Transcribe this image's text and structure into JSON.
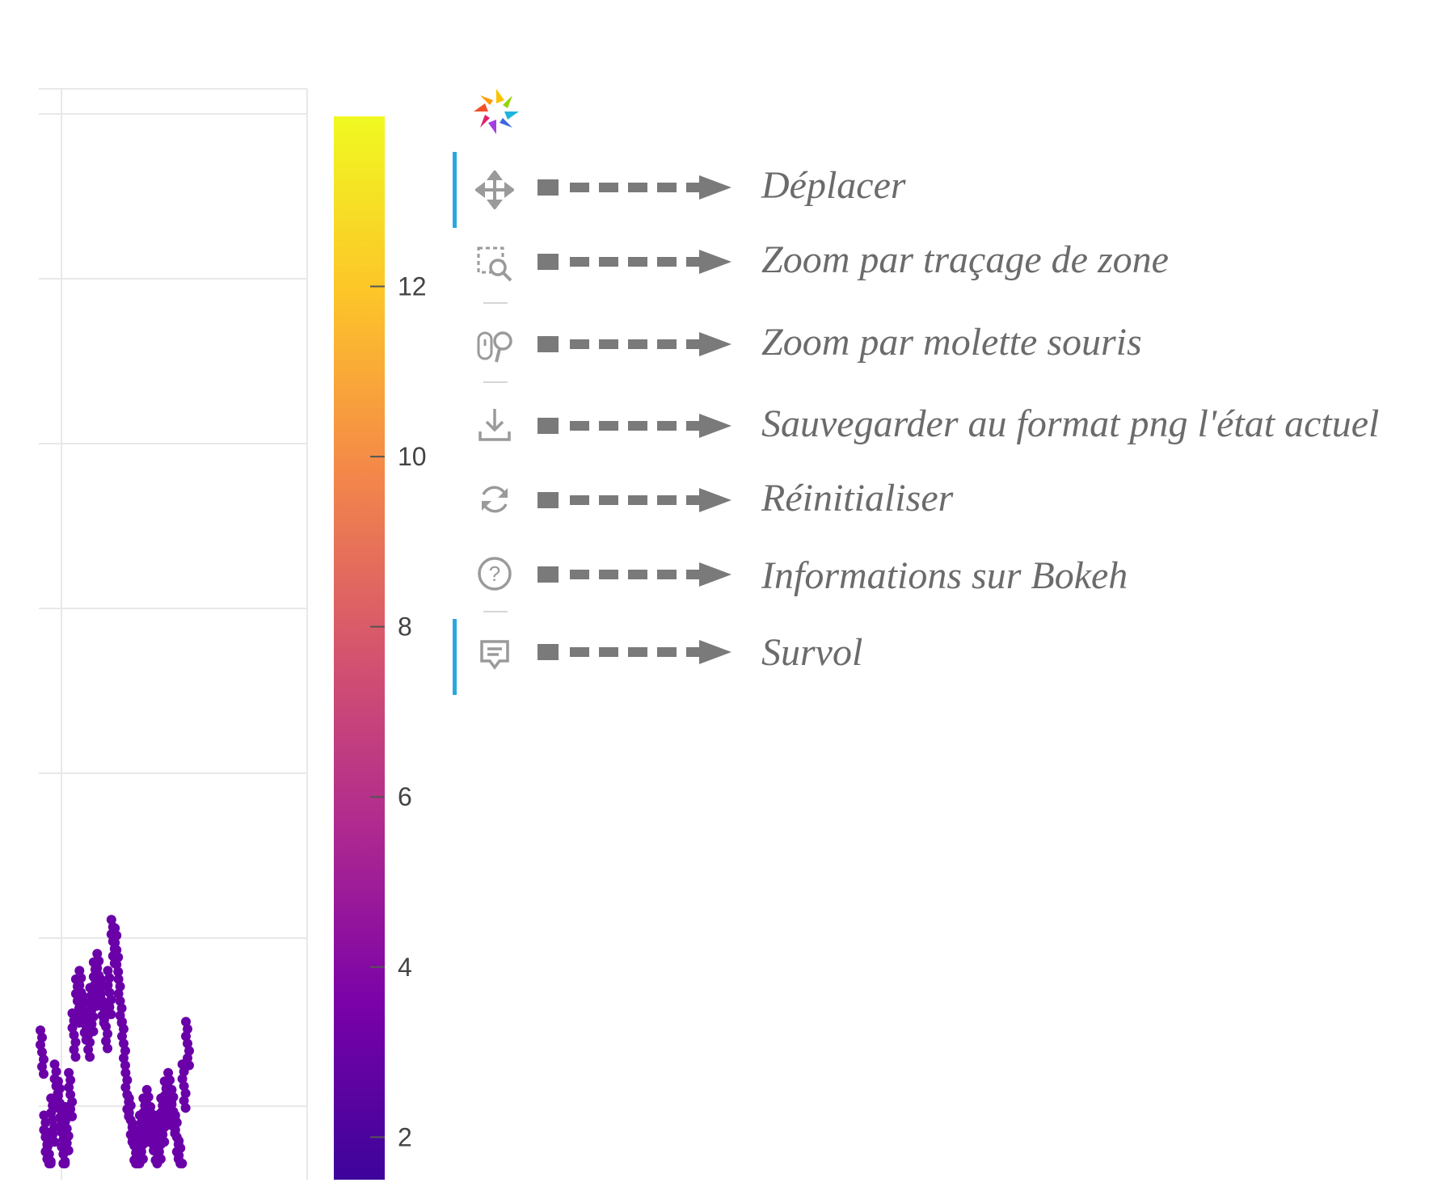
{
  "colorbar": {
    "ticks": [
      "12",
      "10",
      "8",
      "6",
      "4",
      "2"
    ],
    "range": [
      1.5,
      14
    ],
    "palette": "Plasma",
    "colors": [
      "#3d049b",
      "#7a02a8",
      "#b02a8f",
      "#d6556d",
      "#f48849",
      "#fdc529",
      "#f0f921"
    ]
  },
  "plot": {
    "gridline_color": "#e8e8e8",
    "point_color": "#6a00a8",
    "point_values": [
      3.0,
      2.0,
      1.8,
      2.2,
      2.6,
      2.4,
      1.8,
      2.1,
      2.5,
      3.2,
      3.6,
      3.7,
      3.4,
      3.2,
      3.5,
      3.8,
      3.9,
      3.6,
      3.3,
      3.7,
      4.3,
      4.2,
      3.6,
      3.1,
      2.5,
      2.2,
      1.9,
      1.8,
      2.0,
      2.2,
      2.3,
      2.1,
      1.9,
      2.0,
      2.2,
      2.4,
      2.5,
      2.3,
      2.0,
      1.7,
      2.6,
      3.1
    ]
  },
  "toolbar": {
    "logo_name": "bokeh-logo",
    "accent_color": "#29a8e0",
    "tools": [
      {
        "icon": "pan-icon",
        "label": "Déplacer",
        "active": true
      },
      {
        "icon": "box-zoom-icon",
        "label": "Zoom par traçage de zone",
        "active": false
      },
      {
        "icon": "wheel-zoom-icon",
        "label": "Zoom par molette souris",
        "active": false
      },
      {
        "icon": "save-icon",
        "label": "Sauvegarder au format png l'état actuel",
        "active": false
      },
      {
        "icon": "reset-icon",
        "label": "Réinitialiser",
        "active": false
      },
      {
        "icon": "help-icon",
        "label": "Informations sur Bokeh",
        "active": false
      },
      {
        "icon": "hover-icon",
        "label": "Survol",
        "active": true
      }
    ]
  }
}
